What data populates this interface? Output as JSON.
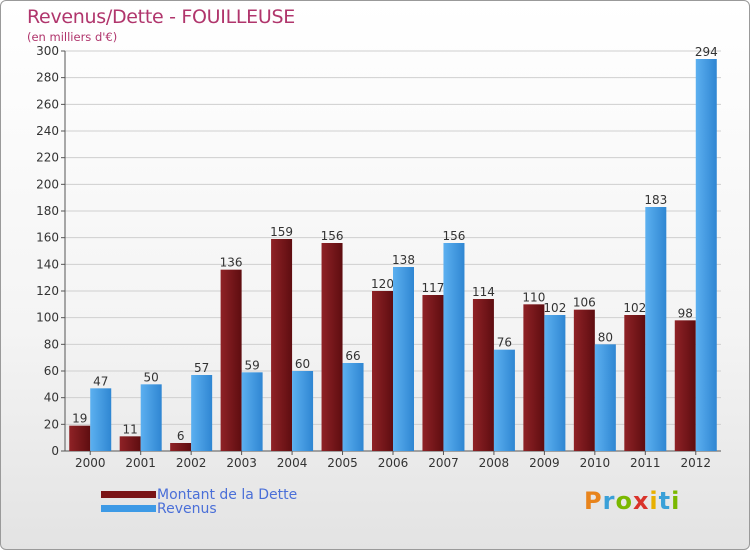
{
  "title": "Revenus/Dette - FOUILLEUSE",
  "subtitle": "(en milliers d'€)",
  "colors": {
    "dette": "#7a1416",
    "revenus": "#3d9ae6",
    "title": "#b0356c",
    "legend_text": "#4a6fd8"
  },
  "legend": [
    {
      "label": "Montant de la Dette",
      "color": "#7a1416"
    },
    {
      "label": "Revenus",
      "color": "#3d9ae6"
    }
  ],
  "logo": {
    "text": "Proxiti",
    "letters": [
      "P",
      "r",
      "o",
      "x",
      "i",
      "t",
      "i"
    ],
    "letter_colors": [
      "#e8841c",
      "#3aa0d8",
      "#7ab800",
      "#d9332b",
      "#e8b000",
      "#3aa0d8",
      "#7ab800"
    ]
  },
  "chart_data": {
    "type": "bar",
    "title": "Revenus/Dette - FOUILLEUSE",
    "subtitle": "(en milliers d'€)",
    "categories": [
      "2000",
      "2001",
      "2002",
      "2003",
      "2004",
      "2005",
      "2006",
      "2007",
      "2008",
      "2009",
      "2010",
      "2011",
      "2012"
    ],
    "series": [
      {
        "name": "Montant de la Dette",
        "values": [
          19,
          11,
          6,
          136,
          159,
          156,
          120,
          117,
          114,
          110,
          106,
          102,
          98
        ]
      },
      {
        "name": "Revenus",
        "values": [
          47,
          50,
          57,
          59,
          60,
          66,
          138,
          156,
          76,
          102,
          80,
          183,
          294
        ]
      }
    ],
    "ylim": [
      0,
      300
    ],
    "yticks": [
      0,
      20,
      40,
      60,
      80,
      100,
      120,
      140,
      160,
      180,
      200,
      220,
      240,
      260,
      280,
      300
    ],
    "grid": true,
    "legend_position": "bottom-left"
  }
}
